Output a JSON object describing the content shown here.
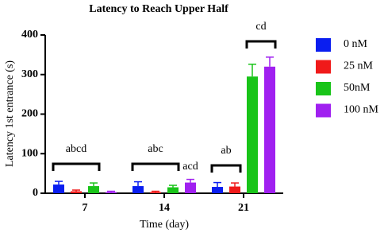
{
  "chart_data": {
    "type": "bar",
    "title": "Latency to Reach Upper Half",
    "x_label": "Time (day)",
    "y_label": "Latency 1st entrance (s)",
    "categories": [
      "7",
      "14",
      "21"
    ],
    "series": [
      {
        "name": "0 nM",
        "color": "#0a1ef0",
        "values": [
          22,
          18,
          16
        ],
        "errors": [
          8,
          11,
          11
        ]
      },
      {
        "name": "25 nM",
        "color": "#f01a1a",
        "values": [
          5,
          3,
          17
        ],
        "errors": [
          3,
          2,
          9
        ]
      },
      {
        "name": "50nM",
        "color": "#19c419",
        "values": [
          18,
          15,
          295
        ],
        "errors": [
          8,
          5,
          31
        ]
      },
      {
        "name": "100 nM",
        "color": "#a020f0",
        "values": [
          3,
          27,
          320
        ],
        "errors": [
          2,
          8,
          24
        ]
      }
    ],
    "ylim": [
      0,
      400
    ],
    "yticks": [
      0,
      100,
      200,
      300,
      400
    ],
    "annotations": [
      "abcd",
      "abc",
      "acd",
      "ab",
      "cd"
    ]
  }
}
